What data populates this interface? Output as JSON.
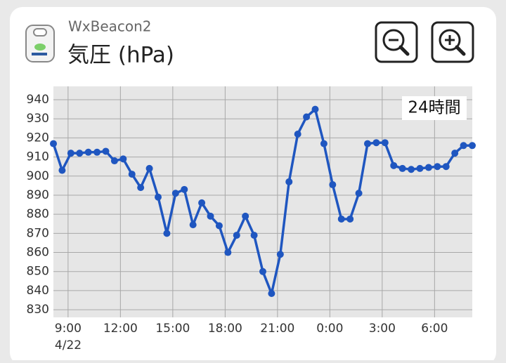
{
  "header": {
    "app_name": "WxBeacon2"
  },
  "chart_data": {
    "type": "line",
    "title": "気圧 (hPa)",
    "period_label": "24時間",
    "date_label": "4/22",
    "color": "#1f56c0",
    "grid": true,
    "x": [
      8.16,
      8.66,
      9.16,
      9.66,
      10.16,
      10.66,
      11.16,
      11.66,
      12.16,
      12.66,
      13.16,
      13.66,
      14.16,
      14.66,
      15.16,
      15.66,
      16.16,
      16.66,
      17.16,
      17.66,
      18.16,
      18.66,
      19.16,
      19.66,
      20.16,
      20.66,
      21.16,
      21.66,
      22.16,
      22.66,
      23.16,
      23.66,
      24.16,
      24.66,
      25.16,
      25.66,
      26.16,
      26.66,
      27.16,
      27.66,
      28.16,
      28.66,
      29.16,
      29.66,
      30.16,
      30.66,
      31.16,
      31.66,
      32.16
    ],
    "values": [
      917,
      903,
      912,
      912,
      912.5,
      912.5,
      913,
      908,
      909,
      901,
      894,
      904,
      889,
      870,
      891,
      893,
      874.5,
      886,
      879,
      874,
      860,
      869,
      879,
      869,
      850,
      838.5,
      859,
      897,
      922,
      931,
      935,
      917,
      895.5,
      877.5,
      877.5,
      891,
      917,
      917.5,
      917.5,
      905.5,
      904,
      903.5,
      904,
      904.5,
      905,
      905,
      912,
      916,
      916
    ],
    "xlim": [
      8.16,
      32.16
    ],
    "xticks": [
      {
        "value": 9,
        "label": "9:00"
      },
      {
        "value": 12,
        "label": "12:00"
      },
      {
        "value": 15,
        "label": "15:00"
      },
      {
        "value": 18,
        "label": "18:00"
      },
      {
        "value": 21,
        "label": "21:00"
      },
      {
        "value": 24,
        "label": "0:00"
      },
      {
        "value": 27,
        "label": "3:00"
      },
      {
        "value": 30,
        "label": "6:00"
      }
    ],
    "ylim": [
      826,
      947
    ],
    "yticks": [
      830,
      840,
      850,
      860,
      870,
      880,
      890,
      900,
      910,
      920,
      930,
      940
    ]
  }
}
